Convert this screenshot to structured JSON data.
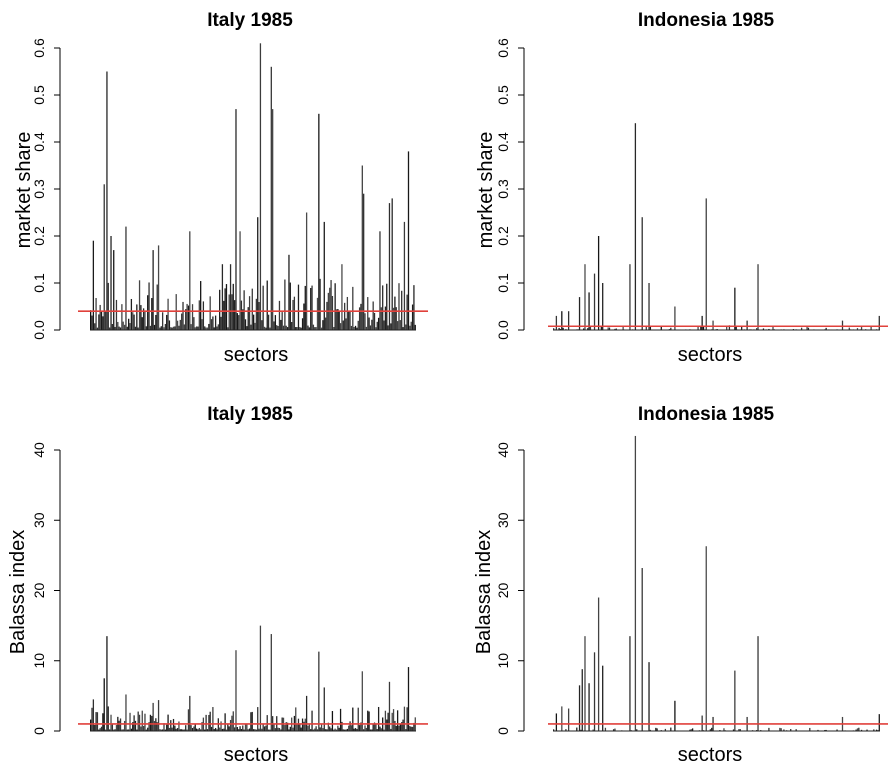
{
  "chart_data": [
    {
      "type": "bar",
      "title": "Italy 1985",
      "xlabel": "sectors",
      "ylabel": "market share",
      "ylim": [
        0,
        0.6
      ],
      "yticks": [
        "0.0",
        "0.1",
        "0.2",
        "0.3",
        "0.4",
        "0.5",
        "0.6"
      ],
      "reference_line": 0.04,
      "reference_color": "#e0413b",
      "bar_color": "#111111",
      "n_sectors": 240,
      "baseline_range": [
        0.005,
        0.11
      ],
      "peaks": [
        [
          3,
          0.19
        ],
        [
          13,
          0.55
        ],
        [
          11,
          0.31
        ],
        [
          16,
          0.2
        ],
        [
          18,
          0.17
        ],
        [
          27,
          0.22
        ],
        [
          47,
          0.17
        ],
        [
          51,
          0.18
        ],
        [
          74,
          0.21
        ],
        [
          98,
          0.14
        ],
        [
          104,
          0.14
        ],
        [
          108,
          0.47
        ],
        [
          111,
          0.21
        ],
        [
          124,
          0.24
        ],
        [
          126,
          0.61
        ],
        [
          134,
          0.56
        ],
        [
          135,
          0.47
        ],
        [
          147,
          0.16
        ],
        [
          160,
          0.25
        ],
        [
          169,
          0.46
        ],
        [
          173,
          0.23
        ],
        [
          186,
          0.14
        ],
        [
          201,
          0.35
        ],
        [
          202,
          0.29
        ],
        [
          214,
          0.21
        ],
        [
          221,
          0.27
        ],
        [
          223,
          0.28
        ],
        [
          232,
          0.23
        ],
        [
          235,
          0.38
        ]
      ]
    },
    {
      "type": "bar",
      "title": "Indonesia 1985",
      "xlabel": "sectors",
      "ylabel": "market share",
      "ylim": [
        0,
        0.6
      ],
      "yticks": [
        "0.0",
        "0.1",
        "0.2",
        "0.3",
        "0.4",
        "0.5",
        "0.6"
      ],
      "reference_line": 0.008,
      "reference_color": "#e0413b",
      "bar_color": "#111111",
      "n_sectors": 240,
      "baseline_range": [
        0,
        0.01
      ],
      "peaks": [
        [
          3,
          0.03
        ],
        [
          7,
          0.04
        ],
        [
          12,
          0.04
        ],
        [
          20,
          0.07
        ],
        [
          24,
          0.14
        ],
        [
          27,
          0.08
        ],
        [
          31,
          0.12
        ],
        [
          34,
          0.2
        ],
        [
          37,
          0.1
        ],
        [
          57,
          0.14
        ],
        [
          61,
          0.44
        ],
        [
          66,
          0.24
        ],
        [
          71,
          0.1
        ],
        [
          90,
          0.05
        ],
        [
          110,
          0.03
        ],
        [
          113,
          0.28
        ],
        [
          118,
          0.02
        ],
        [
          130,
          0.01
        ],
        [
          134,
          0.09
        ],
        [
          143,
          0.02
        ],
        [
          151,
          0.14
        ],
        [
          213,
          0.02
        ],
        [
          240,
          0.03
        ]
      ]
    },
    {
      "type": "bar",
      "title": "Italy 1985",
      "xlabel": "sectors",
      "ylabel": "Balassa index",
      "ylim": [
        0,
        40
      ],
      "yticks": [
        "0",
        "10",
        "20",
        "30",
        "40"
      ],
      "reference_line": 1,
      "reference_color": "#e0413b",
      "bar_color": "#111111",
      "n_sectors": 240,
      "baseline_range": [
        0.2,
        3.5
      ],
      "peaks": [
        [
          3,
          4.5
        ],
        [
          13,
          13.5
        ],
        [
          11,
          7.5
        ],
        [
          27,
          5.2
        ],
        [
          47,
          4
        ],
        [
          51,
          4.4
        ],
        [
          74,
          5
        ],
        [
          108,
          11.5
        ],
        [
          126,
          15
        ],
        [
          134,
          13.8
        ],
        [
          160,
          5
        ],
        [
          169,
          11.3
        ],
        [
          173,
          6.2
        ],
        [
          201,
          8.5
        ],
        [
          221,
          7
        ],
        [
          235,
          9.1
        ]
      ]
    },
    {
      "type": "bar",
      "title": "Indonesia 1985",
      "xlabel": "sectors",
      "ylabel": "Balassa index",
      "ylim": [
        0,
        40
      ],
      "yticks": [
        "0",
        "10",
        "20",
        "30",
        "40"
      ],
      "reference_line": 1,
      "reference_color": "#e0413b",
      "bar_color": "#111111",
      "n_sectors": 240,
      "baseline_range": [
        0,
        0.5
      ],
      "peaks": [
        [
          3,
          2.5
        ],
        [
          7,
          3.5
        ],
        [
          12,
          3.2
        ],
        [
          20,
          6.5
        ],
        [
          22,
          8.8
        ],
        [
          24,
          13.5
        ],
        [
          27,
          6.8
        ],
        [
          31,
          11.2
        ],
        [
          34,
          19
        ],
        [
          37,
          9.3
        ],
        [
          57,
          13.5
        ],
        [
          61,
          42
        ],
        [
          66,
          23.2
        ],
        [
          71,
          9.8
        ],
        [
          90,
          4.3
        ],
        [
          110,
          2.2
        ],
        [
          113,
          26.3
        ],
        [
          118,
          2
        ],
        [
          134,
          8.6
        ],
        [
          143,
          2
        ],
        [
          151,
          13.5
        ],
        [
          213,
          2
        ],
        [
          240,
          2.4
        ]
      ]
    }
  ]
}
